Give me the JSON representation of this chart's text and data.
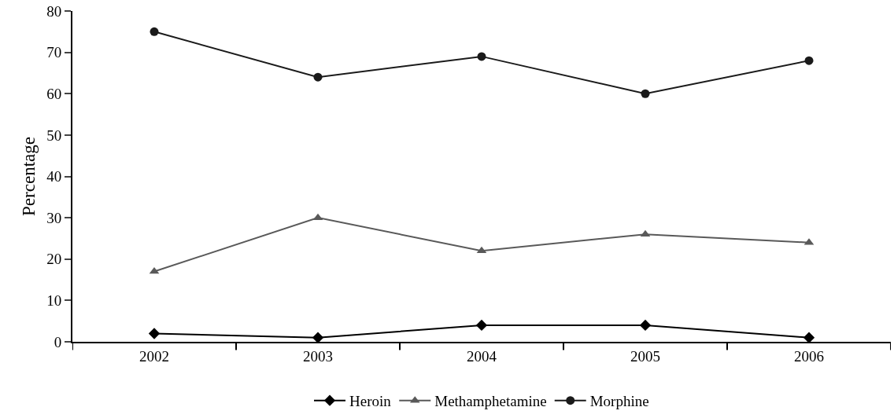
{
  "chart_data": {
    "type": "line",
    "ylabel": "Percentage",
    "categories": [
      "2002",
      "2003",
      "2004",
      "2005",
      "2006"
    ],
    "series": [
      {
        "name": "Heroin",
        "color": "#000000",
        "marker": "diamond",
        "values": [
          2,
          1,
          4,
          4,
          1
        ]
      },
      {
        "name": "Methamphetamine",
        "color": "#595959",
        "marker": "triangle",
        "values": [
          17,
          30,
          22,
          26,
          24
        ]
      },
      {
        "name": "Morphine",
        "color": "#1a1a1a",
        "marker": "circle",
        "values": [
          75,
          64,
          69,
          60,
          68
        ]
      }
    ],
    "ylim": [
      0,
      80
    ],
    "yticks": [
      0,
      10,
      20,
      30,
      40,
      50,
      60,
      70,
      80
    ],
    "legend": "bottom",
    "line_style": "solid"
  }
}
